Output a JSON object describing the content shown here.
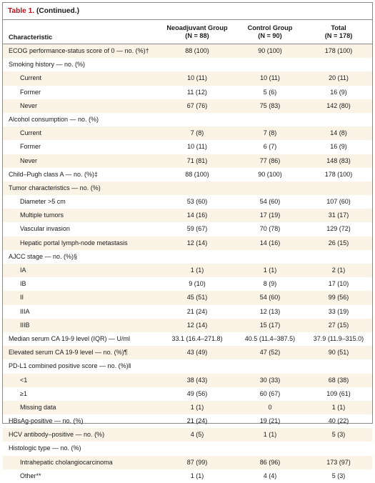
{
  "table": {
    "title_prefix": "Table 1.",
    "title_suffix": " (Continued.)",
    "headers": {
      "characteristic": "Characteristic",
      "neoadjuvant": "Neoadjuvant Group",
      "neoadjuvant_n": "(N = 88)",
      "control": "Control Group",
      "control_n": "(N = 90)",
      "total": "Total",
      "total_n": "(N = 178)"
    },
    "rows": [
      {
        "label": "ECOG performance-status score of 0 — no. (%)†",
        "neo": "88 (100)",
        "ctrl": "90 (100)",
        "total": "178 (100)",
        "indent": false,
        "shaded": true
      },
      {
        "label": "Smoking history — no. (%)",
        "neo": "",
        "ctrl": "",
        "total": "",
        "indent": false,
        "shaded": false
      },
      {
        "label": "Current",
        "neo": "10 (11)",
        "ctrl": "10 (11)",
        "total": "20 (11)",
        "indent": true,
        "shaded": true
      },
      {
        "label": "Former",
        "neo": "11 (12)",
        "ctrl": "5 (6)",
        "total": "16 (9)",
        "indent": true,
        "shaded": false
      },
      {
        "label": "Never",
        "neo": "67 (76)",
        "ctrl": "75 (83)",
        "total": "142 (80)",
        "indent": true,
        "shaded": true
      },
      {
        "label": "Alcohol consumption — no. (%)",
        "neo": "",
        "ctrl": "",
        "total": "",
        "indent": false,
        "shaded": false
      },
      {
        "label": "Current",
        "neo": "7 (8)",
        "ctrl": "7 (8)",
        "total": "14 (8)",
        "indent": true,
        "shaded": true
      },
      {
        "label": "Former",
        "neo": "10 (11)",
        "ctrl": "6 (7)",
        "total": "16 (9)",
        "indent": true,
        "shaded": false
      },
      {
        "label": "Never",
        "neo": "71 (81)",
        "ctrl": "77 (86)",
        "total": "148 (83)",
        "indent": true,
        "shaded": true
      },
      {
        "label": "Child–Pugh class A — no. (%)‡",
        "neo": "88 (100)",
        "ctrl": "90 (100)",
        "total": "178 (100)",
        "indent": false,
        "shaded": false
      },
      {
        "label": "Tumor characteristics — no. (%)",
        "neo": "",
        "ctrl": "",
        "total": "",
        "indent": false,
        "shaded": true
      },
      {
        "label": "Diameter >5 cm",
        "neo": "53 (60)",
        "ctrl": "54 (60)",
        "total": "107 (60)",
        "indent": true,
        "shaded": false
      },
      {
        "label": "Multiple tumors",
        "neo": "14 (16)",
        "ctrl": "17 (19)",
        "total": "31 (17)",
        "indent": true,
        "shaded": true
      },
      {
        "label": "Vascular invasion",
        "neo": "59 (67)",
        "ctrl": "70 (78)",
        "total": "129 (72)",
        "indent": true,
        "shaded": false
      },
      {
        "label": "Hepatic portal lymph-node metastasis",
        "neo": "12 (14)",
        "ctrl": "14 (16)",
        "total": "26 (15)",
        "indent": true,
        "shaded": true
      },
      {
        "label": "AJCC stage — no. (%)§",
        "neo": "",
        "ctrl": "",
        "total": "",
        "indent": false,
        "shaded": false
      },
      {
        "label": "IA",
        "neo": "1 (1)",
        "ctrl": "1 (1)",
        "total": "2 (1)",
        "indent": true,
        "shaded": true
      },
      {
        "label": "IB",
        "neo": "9 (10)",
        "ctrl": "8 (9)",
        "total": "17 (10)",
        "indent": true,
        "shaded": false
      },
      {
        "label": "II",
        "neo": "45 (51)",
        "ctrl": "54 (60)",
        "total": "99 (56)",
        "indent": true,
        "shaded": true
      },
      {
        "label": "IIIA",
        "neo": "21 (24)",
        "ctrl": "12 (13)",
        "total": "33 (19)",
        "indent": true,
        "shaded": false
      },
      {
        "label": "IIIB",
        "neo": "12 (14)",
        "ctrl": "15 (17)",
        "total": "27 (15)",
        "indent": true,
        "shaded": true
      },
      {
        "label": "Median serum CA 19-9 level (IQR) — U/ml",
        "neo": "33.1 (16.4–271.8)",
        "ctrl": "40.5 (11.4–387.5)",
        "total": "37.9 (11.9–315.0)",
        "indent": false,
        "shaded": false
      },
      {
        "label": "Elevated serum CA 19-9 level — no. (%)¶",
        "neo": "43 (49)",
        "ctrl": "47 (52)",
        "total": "90 (51)",
        "indent": false,
        "shaded": true
      },
      {
        "label": "PD-L1 combined positive score — no. (%)‖",
        "neo": "",
        "ctrl": "",
        "total": "",
        "indent": false,
        "shaded": false
      },
      {
        "label": "<1",
        "neo": "38 (43)",
        "ctrl": "30 (33)",
        "total": "68 (38)",
        "indent": true,
        "shaded": true
      },
      {
        "label": "≥1",
        "neo": "49 (56)",
        "ctrl": "60 (67)",
        "total": "109 (61)",
        "indent": true,
        "shaded": false
      },
      {
        "label": "Missing data",
        "neo": "1 (1)",
        "ctrl": "0",
        "total": "1 (1)",
        "indent": true,
        "shaded": true
      },
      {
        "label": "HBsAg-positive — no. (%)",
        "neo": "21 (24)",
        "ctrl": "19 (21)",
        "total": "40 (22)",
        "indent": false,
        "shaded": false
      },
      {
        "label": "HCV antibody–positive — no. (%)",
        "neo": "4 (5)",
        "ctrl": "1 (1)",
        "total": "5 (3)",
        "indent": false,
        "shaded": true
      },
      {
        "label": "Histologic type — no. (%)",
        "neo": "",
        "ctrl": "",
        "total": "",
        "indent": false,
        "shaded": false
      },
      {
        "label": "Intrahepatic cholangiocarcinoma",
        "neo": "87 (99)",
        "ctrl": "86 (96)",
        "total": "173 (97)",
        "indent": true,
        "shaded": true
      },
      {
        "label": "Other**",
        "neo": "1 (1)",
        "ctrl": "4 (4)",
        "total": "5 (3)",
        "indent": true,
        "shaded": false
      }
    ]
  }
}
